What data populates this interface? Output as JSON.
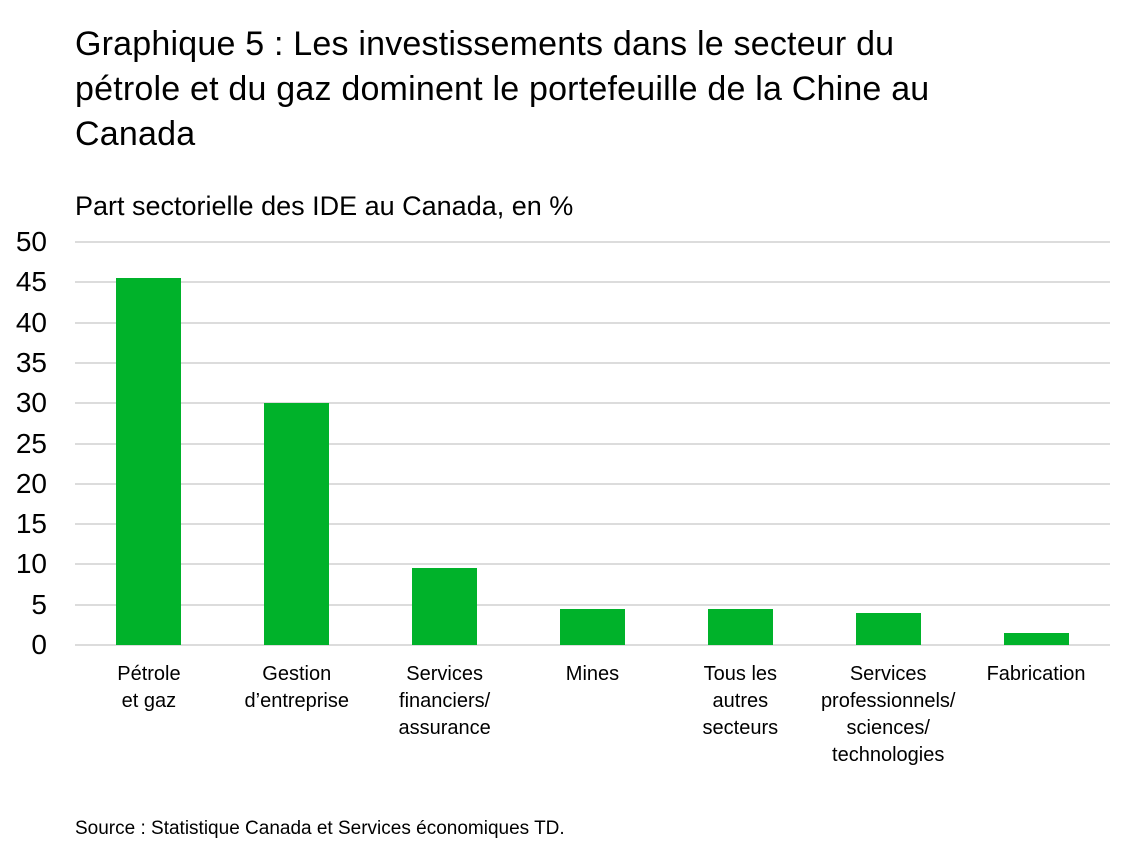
{
  "page": {
    "title": "Graphique 5 : Les investissements dans le secteur du\npétrole et du gaz dominent le portefeuille de la Chine au\nCanada",
    "subtitle": "Part sectorielle des IDE au Canada, en %",
    "source": "Source : Statistique Canada et Services économiques TD."
  },
  "colors": {
    "bar": "#00b22a",
    "gridline": "#dcdcdc",
    "text": "#000000",
    "background": "#ffffff"
  },
  "chart_data": {
    "type": "bar",
    "title": "Graphique 5 : Les investissements dans le secteur du pétrole et du gaz dominent le portefeuille de la Chine au Canada",
    "subtitle": "Part sectorielle des IDE au Canada, en %",
    "categories": [
      "Pétrole et gaz",
      "Gestion d’entreprise",
      "Services financiers/assurance",
      "Mines",
      "Tous les autres secteurs",
      "Services professionnels/sciences/technologies",
      "Fabrication"
    ],
    "category_tick_lines": [
      [
        "Pétrole",
        "et gaz"
      ],
      [
        "Gestion",
        "d’entreprise"
      ],
      [
        "Services",
        "financiers/",
        "assurance"
      ],
      [
        "Mines"
      ],
      [
        "Tous les",
        "autres",
        "secteurs"
      ],
      [
        "Services",
        "professionnels/",
        "sciences/",
        "technologies"
      ],
      [
        "Fabrication"
      ]
    ],
    "values": [
      45.5,
      30,
      9.5,
      4.5,
      4.5,
      4,
      1.5
    ],
    "xlabel": "",
    "ylabel": "Part sectorielle des IDE au Canada, en %",
    "ylim": [
      0,
      50
    ],
    "yticks": [
      0,
      5,
      10,
      15,
      20,
      25,
      30,
      35,
      40,
      45,
      50
    ],
    "grid": "horizontal",
    "legend": "none",
    "bar_color": "#00b22a",
    "source": "Source : Statistique Canada et Services économiques TD."
  }
}
